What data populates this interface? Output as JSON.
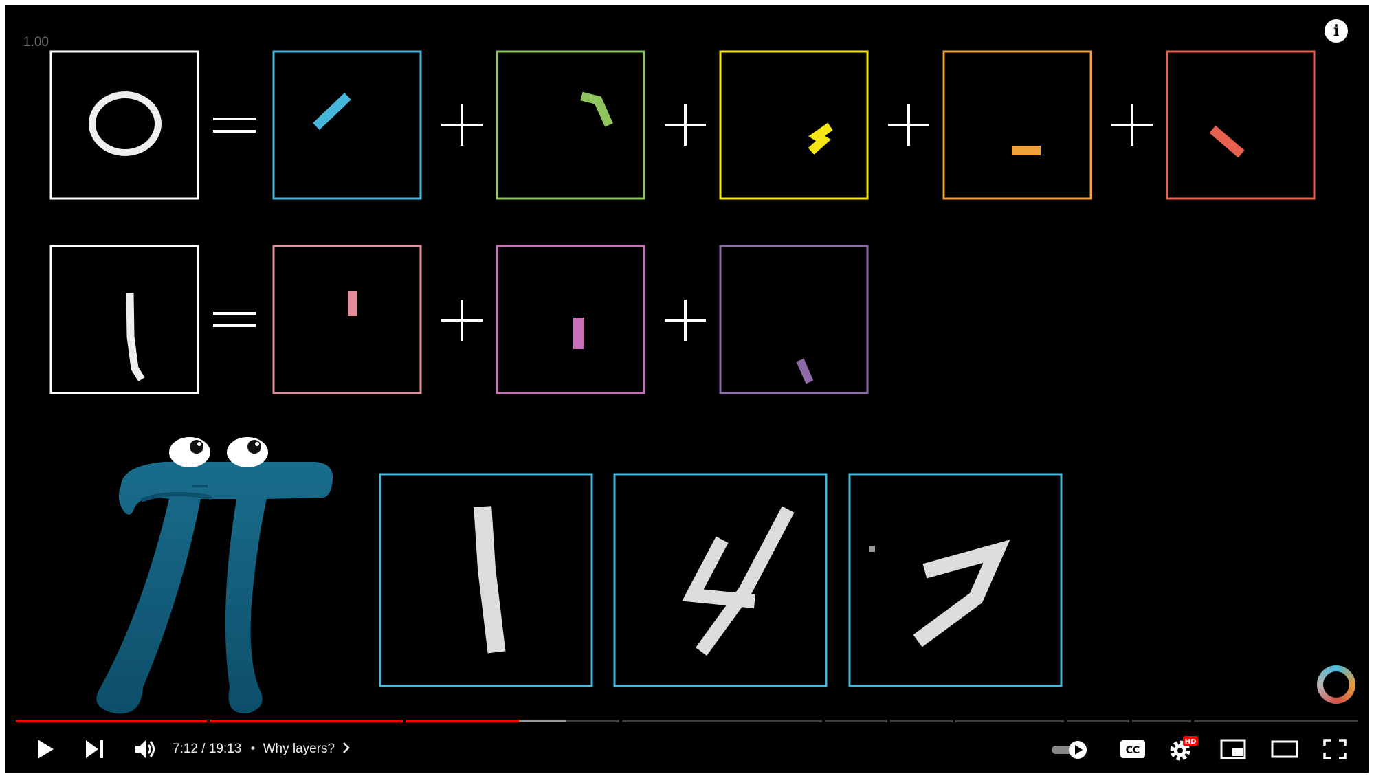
{
  "overlay": {
    "playback_speed": "1.00",
    "info_icon": "i"
  },
  "video": {
    "current_time": "7:12",
    "duration": "19:13",
    "separator": "•",
    "chapter_title": "Why layers?",
    "played_fraction": 0.375,
    "buffered_fraction": 0.41
  },
  "icons": {
    "play": "play-icon",
    "next": "next-icon",
    "volume": "volume-icon",
    "chapter": "chevron-right-icon",
    "autoplay": "autoplay-toggle-icon",
    "captions": "cc-icon",
    "settings": "gear-icon",
    "hd_badge": "HD",
    "miniplayer": "miniplayer-icon",
    "theater": "theater-icon",
    "fullscreen": "fullscreen-icon"
  },
  "colors": {
    "progress_played": "#ff0000",
    "hd_badge": "#ff0000",
    "pi_creature": "#1f6e8c",
    "frame_white": "#ffffff",
    "frame_blue": "#46b7da",
    "frame_green": "#8fc55d",
    "frame_yellow": "#f5e614",
    "frame_orange": "#efa13c",
    "frame_red": "#e9614e",
    "frame_pink": "#e38e9b",
    "frame_magenta": "#c770b9",
    "frame_purple": "#8e6aa7"
  }
}
